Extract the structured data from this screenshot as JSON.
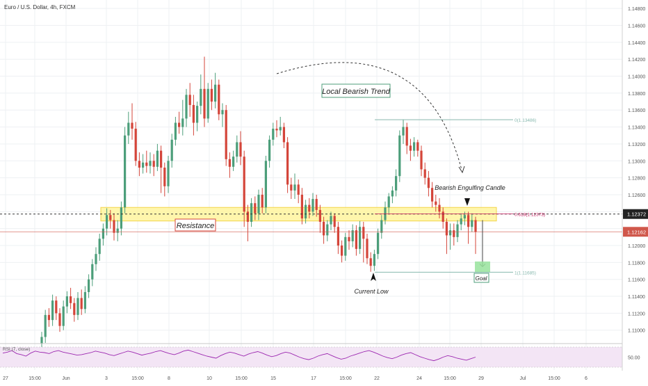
{
  "header": {
    "title": "Euro / U.S. Dollar, 4h, FXCM"
  },
  "colors": {
    "up": "#4c9e7a",
    "down": "#d4453a",
    "grid": "#eef0f3",
    "axis_text": "#555555",
    "resistance_fill": "#fff59d",
    "resistance_stroke": "#f2d44a",
    "fib": "#86b8ae",
    "fib_mid": "#c2185b",
    "price_current": "#333333",
    "price_red": "#d0574b",
    "rsi_fill": "#f3e5f5",
    "rsi_line": "#9c27b0",
    "goal": "#98e39c"
  },
  "chart_data": {
    "type": "candlestick",
    "instrument": "Euro / U.S. Dollar",
    "timeframe": "4h",
    "source": "FXCM",
    "y_axis": {
      "ticks": [
        "1.14800",
        "1.14600",
        "1.14400",
        "1.14200",
        "1.14000",
        "1.13800",
        "1.13600",
        "1.13400",
        "1.13200",
        "1.13000",
        "1.12800",
        "1.12600",
        "1.12400",
        "1.12200",
        "1.12000",
        "1.11800",
        "1.11600",
        "1.11400",
        "1.11200",
        "1.11000"
      ],
      "range": [
        1.1085,
        1.149
      ]
    },
    "x_axis": {
      "ticks": [
        "27",
        "15:00",
        "Jun",
        "3",
        "15:00",
        "8",
        "10",
        "15:00",
        "15",
        "17",
        "15:00",
        "22",
        "24",
        "15:00",
        "29",
        "Jul",
        "15:00",
        "6"
      ]
    },
    "candles": [
      [
        1.1084,
        1.1092,
        1.106,
        1.1098
      ],
      [
        1.1092,
        1.1118,
        1.1085,
        1.1124
      ],
      [
        1.1118,
        1.1112,
        1.1104,
        1.1126
      ],
      [
        1.1112,
        1.1135,
        1.1105,
        1.1142
      ],
      [
        1.1135,
        1.112,
        1.1112,
        1.114
      ],
      [
        1.112,
        1.1105,
        1.1098,
        1.1126
      ],
      [
        1.1105,
        1.1128,
        1.11,
        1.1135
      ],
      [
        1.1128,
        1.114,
        1.112,
        1.1146
      ],
      [
        1.114,
        1.1132,
        1.1125,
        1.115
      ],
      [
        1.1132,
        1.1118,
        1.111,
        1.1138
      ],
      [
        1.1118,
        1.1138,
        1.1112,
        1.1145
      ],
      [
        1.1138,
        1.1125,
        1.1118,
        1.1148
      ],
      [
        1.1125,
        1.1145,
        1.112,
        1.1152
      ],
      [
        1.1145,
        1.116,
        1.1138,
        1.1166
      ],
      [
        1.116,
        1.1178,
        1.1152,
        1.1184
      ],
      [
        1.1178,
        1.119,
        1.117,
        1.1198
      ],
      [
        1.119,
        1.1208,
        1.1182,
        1.1214
      ],
      [
        1.1208,
        1.122,
        1.12,
        1.1226
      ],
      [
        1.122,
        1.1236,
        1.1212,
        1.1244
      ],
      [
        1.1236,
        1.123,
        1.122,
        1.1242
      ],
      [
        1.123,
        1.1215,
        1.1206,
        1.1238
      ],
      [
        1.1215,
        1.122,
        1.1205,
        1.123
      ],
      [
        1.122,
        1.1245,
        1.1212,
        1.1252
      ],
      [
        1.1245,
        1.133,
        1.1238,
        1.134
      ],
      [
        1.133,
        1.1345,
        1.132,
        1.1358
      ],
      [
        1.1345,
        1.1338,
        1.1325,
        1.1368
      ],
      [
        1.1338,
        1.13,
        1.1294,
        1.1346
      ],
      [
        1.13,
        1.1292,
        1.1282,
        1.131
      ],
      [
        1.1292,
        1.1298,
        1.1285,
        1.1308
      ],
      [
        1.1298,
        1.1294,
        1.1286,
        1.1312
      ],
      [
        1.1294,
        1.13,
        1.1285,
        1.131
      ],
      [
        1.13,
        1.1293,
        1.1282,
        1.1308
      ],
      [
        1.1293,
        1.1312,
        1.1288,
        1.132
      ],
      [
        1.1312,
        1.1292,
        1.1262,
        1.1318
      ],
      [
        1.1292,
        1.127,
        1.1258,
        1.1298
      ],
      [
        1.127,
        1.13,
        1.1262,
        1.1306
      ],
      [
        1.13,
        1.1325,
        1.1292,
        1.1332
      ],
      [
        1.1325,
        1.1345,
        1.1318,
        1.1352
      ],
      [
        1.1345,
        1.134,
        1.1332,
        1.1358
      ],
      [
        1.134,
        1.135,
        1.133,
        1.1372
      ],
      [
        1.135,
        1.1378,
        1.134,
        1.1385
      ],
      [
        1.1378,
        1.1366,
        1.1352,
        1.1392
      ],
      [
        1.1366,
        1.1345,
        1.133,
        1.1378
      ],
      [
        1.1345,
        1.1365,
        1.1335,
        1.137
      ],
      [
        1.1365,
        1.1385,
        1.1355,
        1.1402
      ],
      [
        1.1385,
        1.135,
        1.134,
        1.1423
      ],
      [
        1.135,
        1.1385,
        1.1345,
        1.1392
      ],
      [
        1.1385,
        1.137,
        1.136,
        1.1396
      ],
      [
        1.137,
        1.139,
        1.1362,
        1.1404
      ],
      [
        1.139,
        1.1355,
        1.1348,
        1.1396
      ],
      [
        1.1355,
        1.136,
        1.134,
        1.1368
      ],
      [
        1.136,
        1.1302,
        1.1294,
        1.1366
      ],
      [
        1.1302,
        1.1293,
        1.128,
        1.131
      ],
      [
        1.1293,
        1.1305,
        1.1288,
        1.1312
      ],
      [
        1.1305,
        1.1322,
        1.1298,
        1.133
      ],
      [
        1.1322,
        1.1305,
        1.1295,
        1.1335
      ],
      [
        1.1305,
        1.124,
        1.1222,
        1.1312
      ],
      [
        1.124,
        1.1228,
        1.1205,
        1.1248
      ],
      [
        1.1228,
        1.125,
        1.1222,
        1.1256
      ],
      [
        1.125,
        1.1238,
        1.123,
        1.1258
      ],
      [
        1.1238,
        1.126,
        1.123,
        1.1266
      ],
      [
        1.126,
        1.1245,
        1.1238,
        1.1268
      ],
      [
        1.1245,
        1.13,
        1.1238,
        1.1306
      ],
      [
        1.13,
        1.1325,
        1.1292,
        1.133
      ],
      [
        1.1325,
        1.1338,
        1.1318,
        1.1345
      ],
      [
        1.1338,
        1.1336,
        1.1328,
        1.1348
      ],
      [
        1.1336,
        1.134,
        1.133,
        1.1352
      ],
      [
        1.134,
        1.1322,
        1.1315,
        1.1345
      ],
      [
        1.1322,
        1.1272,
        1.1262,
        1.1328
      ],
      [
        1.1272,
        1.1265,
        1.1255,
        1.128
      ],
      [
        1.1265,
        1.1272,
        1.1255,
        1.1285
      ],
      [
        1.1272,
        1.126,
        1.125,
        1.1278
      ],
      [
        1.126,
        1.1232,
        1.1225,
        1.1268
      ],
      [
        1.1232,
        1.1248,
        1.1226,
        1.1254
      ],
      [
        1.1248,
        1.124,
        1.1232,
        1.1256
      ],
      [
        1.124,
        1.1255,
        1.1235,
        1.1262
      ],
      [
        1.1255,
        1.1242,
        1.1234,
        1.126
      ],
      [
        1.1242,
        1.1228,
        1.1215,
        1.1248
      ],
      [
        1.1228,
        1.1212,
        1.1202,
        1.1234
      ],
      [
        1.1212,
        1.1225,
        1.1205,
        1.123
      ],
      [
        1.1225,
        1.1235,
        1.1218,
        1.124
      ],
      [
        1.1235,
        1.1222,
        1.1215,
        1.1238
      ],
      [
        1.1222,
        1.12,
        1.119,
        1.1228
      ],
      [
        1.12,
        1.1188,
        1.118,
        1.1206
      ],
      [
        1.1188,
        1.121,
        1.1182,
        1.1215
      ],
      [
        1.121,
        1.1205,
        1.1195,
        1.1218
      ],
      [
        1.1205,
        1.1218,
        1.1198,
        1.1225
      ],
      [
        1.1218,
        1.1196,
        1.1188,
        1.1224
      ],
      [
        1.1196,
        1.1222,
        1.119,
        1.1229
      ],
      [
        1.1222,
        1.1208,
        1.118,
        1.1228
      ],
      [
        1.1208,
        1.1185,
        1.1178,
        1.1214
      ],
      [
        1.1185,
        1.1176,
        1.1169,
        1.1192
      ],
      [
        1.1176,
        1.119,
        1.117,
        1.1195
      ],
      [
        1.119,
        1.1215,
        1.1184,
        1.122
      ],
      [
        1.1215,
        1.123,
        1.1208,
        1.1236
      ],
      [
        1.123,
        1.1245,
        1.1225,
        1.1252
      ],
      [
        1.1245,
        1.1258,
        1.1238,
        1.1262
      ],
      [
        1.1258,
        1.1265,
        1.125,
        1.127
      ],
      [
        1.1265,
        1.1282,
        1.1258,
        1.129
      ],
      [
        1.1282,
        1.133,
        1.1275,
        1.1336
      ],
      [
        1.133,
        1.134,
        1.132,
        1.1349
      ],
      [
        1.134,
        1.1318,
        1.1308,
        1.1345
      ],
      [
        1.1318,
        1.1312,
        1.13,
        1.1326
      ],
      [
        1.1312,
        1.1322,
        1.1305,
        1.1328
      ],
      [
        1.1322,
        1.1312,
        1.1305,
        1.1325
      ],
      [
        1.1312,
        1.129,
        1.1282,
        1.1318
      ],
      [
        1.129,
        1.128,
        1.1272,
        1.1298
      ],
      [
        1.128,
        1.1268,
        1.1258,
        1.1288
      ],
      [
        1.1268,
        1.1252,
        1.1245,
        1.1275
      ],
      [
        1.1252,
        1.1248,
        1.124,
        1.126
      ],
      [
        1.1248,
        1.124,
        1.1232,
        1.1256
      ],
      [
        1.124,
        1.1228,
        1.122,
        1.1245
      ],
      [
        1.1228,
        1.1212,
        1.119,
        1.1232
      ],
      [
        1.1212,
        1.1218,
        1.1195,
        1.1226
      ],
      [
        1.1218,
        1.121,
        1.12,
        1.1226
      ],
      [
        1.121,
        1.1225,
        1.1204,
        1.123
      ],
      [
        1.1225,
        1.1232,
        1.1218,
        1.1238
      ],
      [
        1.1232,
        1.1236,
        1.1224,
        1.124
      ],
      [
        1.1236,
        1.1222,
        1.1202,
        1.124
      ],
      [
        1.1222,
        1.123,
        1.1216,
        1.1238
      ],
      [
        1.123,
        1.1216,
        1.119,
        1.1234
      ]
    ],
    "rsi": {
      "label": "RSI (7, close)",
      "level": "50.00",
      "values": [
        58,
        60,
        63,
        57,
        55,
        52,
        58,
        62,
        60,
        59,
        57,
        61,
        63,
        60,
        58,
        56,
        54,
        55,
        57,
        59,
        62,
        60,
        58,
        55,
        53,
        56,
        59,
        62,
        60,
        57,
        54,
        56,
        58,
        61,
        63,
        60,
        57,
        55,
        58,
        62,
        64,
        61,
        58,
        55,
        52,
        50,
        48,
        53,
        57,
        60,
        58,
        55,
        52,
        56,
        59,
        61,
        58,
        54,
        51,
        53,
        57,
        60,
        58,
        54,
        50,
        47,
        45,
        48,
        52,
        55,
        57,
        53,
        49,
        46,
        48,
        52,
        55,
        58,
        61,
        63,
        60,
        56,
        52,
        49,
        47,
        50,
        54,
        57,
        59,
        55,
        51,
        48,
        45,
        43,
        46,
        50,
        53,
        51,
        48,
        46,
        44,
        47,
        50
      ]
    },
    "levels": {
      "resistance_label": "Resistance",
      "fib_0_label": "0(1.13486)",
      "fib_0_value": 1.13486,
      "fib_618_label": "0.618(1.12373)",
      "fib_618_value": 1.12373,
      "fib_1_label": "1(1.11685)",
      "fib_1_value": 1.11685,
      "resistance_top": 1.1245,
      "resistance_bottom": 1.1229
    },
    "price_labels": {
      "current": "1.12372",
      "current_value": 1.12372,
      "secondary": "1.12162",
      "secondary_value": 1.12162
    },
    "annotations": {
      "trend": "Local Bearish Trend",
      "engulfing": "Bearish Engulfing Candle",
      "current_low": "Current Low",
      "goal": "Goal"
    }
  }
}
